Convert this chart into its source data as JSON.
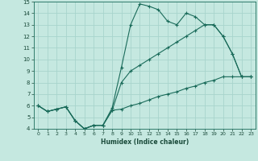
{
  "xlabel": "Humidex (Indice chaleur)",
  "xlim": [
    -0.5,
    23.5
  ],
  "ylim": [
    4,
    15
  ],
  "xticks": [
    0,
    1,
    2,
    3,
    4,
    5,
    6,
    7,
    8,
    9,
    10,
    11,
    12,
    13,
    14,
    15,
    16,
    17,
    18,
    19,
    20,
    21,
    22,
    23
  ],
  "yticks": [
    4,
    5,
    6,
    7,
    8,
    9,
    10,
    11,
    12,
    13,
    14,
    15
  ],
  "bg_color": "#c5e8e0",
  "grid_color": "#a8d4cc",
  "line_color": "#1a6b5a",
  "line1_x": [
    0,
    1,
    2,
    3,
    4,
    5,
    6,
    7,
    8,
    9,
    10,
    11,
    12,
    13,
    14,
    15,
    16,
    17,
    18,
    19,
    20,
    21,
    22,
    23
  ],
  "line1_y": [
    6.0,
    5.5,
    5.7,
    5.9,
    4.7,
    4.0,
    4.3,
    4.3,
    5.8,
    9.3,
    13.0,
    14.8,
    14.6,
    14.3,
    13.3,
    13.0,
    14.0,
    13.7,
    13.0,
    13.0,
    12.0,
    10.5,
    8.5,
    8.5
  ],
  "line2_x": [
    0,
    1,
    2,
    3,
    4,
    5,
    6,
    7,
    8,
    9,
    10,
    11,
    12,
    13,
    14,
    15,
    16,
    17,
    18,
    19,
    20,
    21,
    22,
    23
  ],
  "line2_y": [
    6.0,
    5.5,
    5.7,
    5.9,
    4.7,
    4.0,
    4.3,
    4.3,
    5.6,
    8.0,
    9.0,
    9.5,
    10.0,
    10.5,
    11.0,
    11.5,
    12.0,
    12.5,
    13.0,
    13.0,
    12.0,
    10.5,
    8.5,
    8.5
  ],
  "line3_x": [
    0,
    1,
    2,
    3,
    4,
    5,
    6,
    7,
    8,
    9,
    10,
    11,
    12,
    13,
    14,
    15,
    16,
    17,
    18,
    19,
    20,
    21,
    22,
    23
  ],
  "line3_y": [
    6.0,
    5.5,
    5.7,
    5.9,
    4.7,
    4.0,
    4.3,
    4.3,
    5.6,
    5.7,
    6.0,
    6.2,
    6.5,
    6.8,
    7.0,
    7.2,
    7.5,
    7.7,
    8.0,
    8.2,
    8.5,
    8.5,
    8.5,
    8.5
  ]
}
